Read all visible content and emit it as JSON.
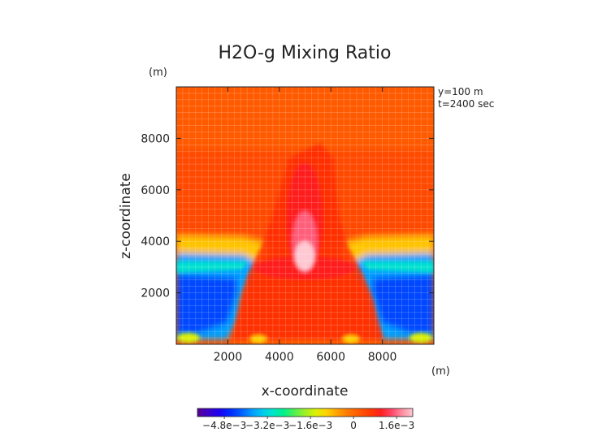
{
  "chart_data": {
    "type": "heatmap",
    "title": "H2O-g Mixing Ratio",
    "xlabel": "x-coordinate",
    "ylabel": "z-coordinate",
    "x_unit": "(m)",
    "y_unit": "(m)",
    "annotations": [
      "y=100 m",
      "t=2400 sec"
    ],
    "xlim": [
      0,
      10000
    ],
    "ylim": [
      0,
      10000
    ],
    "x_ticks": [
      2000,
      4000,
      6000,
      8000
    ],
    "x_tick_labels": [
      "2000",
      "4000",
      "6000",
      "8000"
    ],
    "y_ticks": [
      2000,
      4000,
      6000,
      8000
    ],
    "y_tick_labels": [
      "2000",
      "4000",
      "6000",
      "8000"
    ],
    "colorbar": {
      "min": -0.0058,
      "max": 0.0022,
      "tick_values": [
        -0.0048,
        -0.0032,
        -0.0016,
        0,
        0.0016
      ],
      "tick_labels": [
        "−4.8e−3",
        "−3.2e−3",
        "−1.6e−3",
        "0",
        "1.6e−3"
      ],
      "colors": [
        "#5a0090",
        "#3c00c8",
        "#1e00f0",
        "#0028ff",
        "#005aff",
        "#0096ff",
        "#00c8f0",
        "#00e6c8",
        "#00f08c",
        "#50f050",
        "#a0f028",
        "#dcf000",
        "#ffd200",
        "#ffa000",
        "#ff7800",
        "#ff5a00",
        "#ff3c00",
        "#ff1e1e",
        "#ff4664",
        "#ff8ca0",
        "#ffc8d2"
      ]
    },
    "features": [
      {
        "name": "dry layer",
        "z_range": [
          1800,
          3100
        ],
        "value": -0.0042
      },
      {
        "name": "moist plume core",
        "x": 5000,
        "z_range": [
          2500,
          7500
        ],
        "value": 0.0021
      },
      {
        "name": "transition layer",
        "z_range": [
          3100,
          4000
        ],
        "value": -0.0012
      }
    ]
  }
}
